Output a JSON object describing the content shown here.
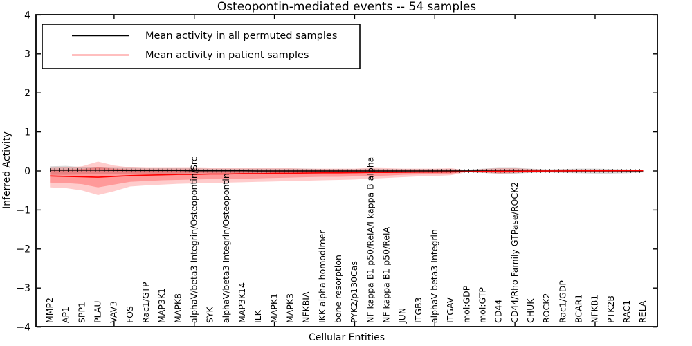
{
  "chart_data": {
    "type": "line",
    "title": "Osteopontin-mediated events -- 54 samples",
    "xlabel": "Cellular Entities",
    "ylabel": "Inferred Activity",
    "ylim": [
      -4,
      4
    ],
    "yticks": [
      -4,
      -3,
      -2,
      -1,
      0,
      1,
      2,
      3,
      4
    ],
    "ytick_labels": [
      "−4",
      "−3",
      "−2",
      "−1",
      "0",
      "1",
      "2",
      "3",
      "4"
    ],
    "grid": false,
    "legend_position": "upper left",
    "x_major_tick_every": 5,
    "categories": [
      "MMP2",
      "AP1",
      "SPP1",
      "PLAU",
      "VAV3",
      "FOS",
      "Rac1/GTP",
      "MAP3K1",
      "MAPK8",
      "alphaV/beta3 Integrin/Osteopontin/Src",
      "SYK",
      "alphaV/beta3 Integrin/Osteopontin",
      "MAP3K14",
      "ILK",
      "MAPK1",
      "MAPK3",
      "NFKBIA",
      "IKK alpha homodimer",
      "bone resorption",
      "PYK2/p130Cas",
      "NF kappa B1 p50/RelA/I kappa B alpha",
      "NF kappa B1 p50/RelA",
      "JUN",
      "ITGB3",
      "alphaV beta3 Integrin",
      "ITGAV",
      "mol:GDP",
      "mol:GTP",
      "CD44",
      "CD44/Rho Family GTPase/ROCK2",
      "CHUK",
      "ROCK2",
      "Rac1/GDP",
      "BCAR1",
      "NFKB1",
      "PTK2B",
      "RAC1",
      "RELA"
    ],
    "series": [
      {
        "name": "Mean activity in all permuted samples",
        "color": "#000000",
        "band_color": "rgba(120,120,120,0.28)",
        "values": [
          0.02,
          0.02,
          0.02,
          0.02,
          0.015,
          0.01,
          0.01,
          0.01,
          0.01,
          0.005,
          0.005,
          0.005,
          0.005,
          0,
          0,
          0,
          0,
          0,
          0,
          0,
          0,
          0,
          0,
          0,
          0,
          0,
          0,
          0,
          0,
          0,
          0,
          0,
          0,
          0,
          0,
          0,
          0,
          0
        ],
        "band_upper": [
          0.12,
          0.13,
          0.1,
          0.09,
          0.08,
          0.08,
          0.07,
          0.07,
          0.07,
          0.07,
          0.06,
          0.06,
          0.06,
          0.06,
          0.06,
          0.06,
          0.06,
          0.05,
          0.05,
          0.05,
          0.06,
          0.05,
          0.05,
          0.05,
          0.05,
          0.05,
          0.03,
          0.06,
          0.08,
          0.08,
          0.06,
          0.04,
          0.05,
          0.06,
          0.06,
          0.05,
          0.04,
          0.03
        ],
        "band_lower": [
          -0.1,
          -0.1,
          -0.09,
          -0.08,
          -0.08,
          -0.07,
          -0.07,
          -0.07,
          -0.07,
          -0.06,
          -0.06,
          -0.06,
          -0.06,
          -0.06,
          -0.05,
          -0.05,
          -0.05,
          -0.05,
          -0.05,
          -0.05,
          -0.05,
          -0.05,
          -0.05,
          -0.05,
          -0.04,
          -0.04,
          -0.03,
          -0.05,
          -0.07,
          -0.07,
          -0.05,
          -0.04,
          -0.05,
          -0.06,
          -0.07,
          -0.07,
          -0.06,
          -0.04
        ]
      },
      {
        "name": "Mean activity in patient samples",
        "color": "#ff0000",
        "band_color": "rgba(255,0,0,0.25)",
        "band_outer_color": "rgba(255,0,0,0.20)",
        "values": [
          -0.13,
          -0.14,
          -0.15,
          -0.16,
          -0.14,
          -0.12,
          -0.11,
          -0.1,
          -0.09,
          -0.09,
          -0.08,
          -0.08,
          -0.07,
          -0.07,
          -0.06,
          -0.06,
          -0.055,
          -0.05,
          -0.05,
          -0.045,
          -0.04,
          -0.04,
          -0.035,
          -0.03,
          -0.03,
          -0.025,
          -0.02,
          -0.015,
          -0.01,
          -0.01,
          -0.005,
          0,
          0,
          0.005,
          0.005,
          0.005,
          0.01,
          0.01
        ],
        "band_upper": [
          0.04,
          0.04,
          0.05,
          0.09,
          0.06,
          0.04,
          0.04,
          0.04,
          0.04,
          0.04,
          0.03,
          0.03,
          0.03,
          0.03,
          0.03,
          0.03,
          0.03,
          0.03,
          0.03,
          0.03,
          0.04,
          0.03,
          0.03,
          0.03,
          0.03,
          0.03,
          0.01,
          0.02,
          0.03,
          0.03,
          0.02,
          0.01,
          0.02,
          0.02,
          0.02,
          0.015,
          0.015,
          0.01
        ],
        "band_lower": [
          -0.3,
          -0.31,
          -0.34,
          -0.42,
          -0.35,
          -0.28,
          -0.26,
          -0.24,
          -0.23,
          -0.22,
          -0.21,
          -0.2,
          -0.2,
          -0.19,
          -0.18,
          -0.17,
          -0.16,
          -0.15,
          -0.15,
          -0.14,
          -0.13,
          -0.12,
          -0.1,
          -0.09,
          -0.08,
          -0.07,
          -0.02,
          -0.03,
          -0.05,
          -0.04,
          -0.03,
          -0.02,
          -0.02,
          -0.02,
          -0.02,
          -0.015,
          -0.015,
          -0.015
        ],
        "band_outer_upper": [
          0.08,
          0.09,
          0.12,
          0.24,
          0.14,
          0.09,
          0.08,
          0.08,
          0.08,
          0.08,
          0.07,
          0.07,
          0.07,
          0.07,
          0.07,
          0.07,
          0.06,
          0.06,
          0.06,
          0.06,
          0.08,
          0.07,
          0.06,
          0.06,
          0.06,
          0.07,
          0.02,
          0.05,
          0.07,
          0.07,
          0.05,
          0.03,
          0.04,
          0.04,
          0.04,
          0.03,
          0.03,
          0.02
        ],
        "band_outer_lower": [
          -0.42,
          -0.44,
          -0.5,
          -0.62,
          -0.52,
          -0.4,
          -0.37,
          -0.35,
          -0.33,
          -0.32,
          -0.31,
          -0.3,
          -0.29,
          -0.28,
          -0.27,
          -0.26,
          -0.25,
          -0.24,
          -0.23,
          -0.22,
          -0.2,
          -0.18,
          -0.16,
          -0.14,
          -0.13,
          -0.11,
          -0.03,
          -0.05,
          -0.07,
          -0.06,
          -0.04,
          -0.03,
          -0.03,
          -0.03,
          -0.03,
          -0.02,
          -0.02,
          -0.02
        ]
      }
    ]
  },
  "colors": {
    "frame": "#000000",
    "background": "#ffffff"
  }
}
